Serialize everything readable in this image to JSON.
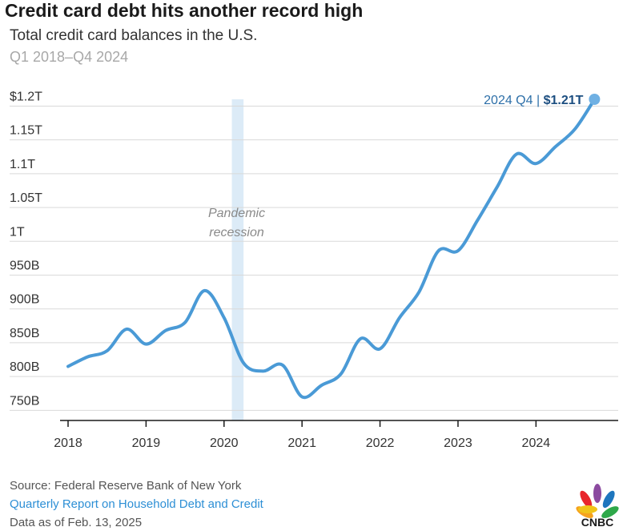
{
  "header": {
    "title": "Credit card debt hits another record high",
    "subtitle": "Total credit card balances in the U.S.",
    "date_range": "Q1 2018–Q4 2024"
  },
  "footer": {
    "source": "Source: Federal Reserve Bank of New York",
    "report_link": "Quarterly Report on Household Debt and Credit",
    "data_as_of": "Data as of Feb. 13, 2025"
  },
  "logo": {
    "text": "CNBC"
  },
  "colors": {
    "line": "#4a9ad6",
    "band": "#dcebf7",
    "grid": "#d9d9d9",
    "axis": "#1a1a1a",
    "accent_dark": "#1c4e80"
  },
  "chart_data": {
    "type": "line",
    "title": "Credit card debt hits another record high",
    "subtitle": "Total credit card balances in the U.S.",
    "xlabel": "",
    "ylabel": "",
    "unit": "billions USD",
    "x": [
      2018.0,
      2018.25,
      2018.5,
      2018.75,
      2019.0,
      2019.25,
      2019.5,
      2019.75,
      2020.0,
      2020.25,
      2020.5,
      2020.75,
      2021.0,
      2021.25,
      2021.5,
      2021.75,
      2022.0,
      2022.25,
      2022.5,
      2022.75,
      2023.0,
      2023.25,
      2023.5,
      2023.75,
      2024.0,
      2024.25,
      2024.5,
      2024.75
    ],
    "series": [
      {
        "values": [
          815,
          829,
          838,
          870,
          848,
          868,
          880,
          927,
          887,
          820,
          808,
          817,
          770,
          787,
          804,
          856,
          841,
          887,
          925,
          986,
          986,
          1031,
          1080,
          1129,
          1115,
          1140,
          1166,
          1210
        ]
      }
    ],
    "xlim": [
      2018.0,
      2024.9
    ],
    "ylim": [
      735,
      1210
    ],
    "yticks": [
      750,
      800,
      850,
      900,
      950,
      1000,
      1050,
      1100,
      1150,
      1200
    ],
    "ytick_labels": [
      "750B",
      "800B",
      "850B",
      "900B",
      "950B",
      "1T",
      "1.05T",
      "1.1T",
      "1.15T",
      "$1.2T"
    ],
    "xticks": [
      2018,
      2019,
      2020,
      2021,
      2022,
      2023,
      2024
    ],
    "xtick_labels": [
      "2018",
      "2019",
      "2020",
      "2021",
      "2022",
      "2023",
      "2024"
    ],
    "grid": true,
    "recession_band": {
      "start": 2020.1,
      "end": 2020.25,
      "label_line1": "Pandemic",
      "label_line2": "recession"
    },
    "annotation": {
      "label": "2024 Q4 | ",
      "value": "$1.21T",
      "x": 2024.75,
      "y": 1210
    }
  }
}
